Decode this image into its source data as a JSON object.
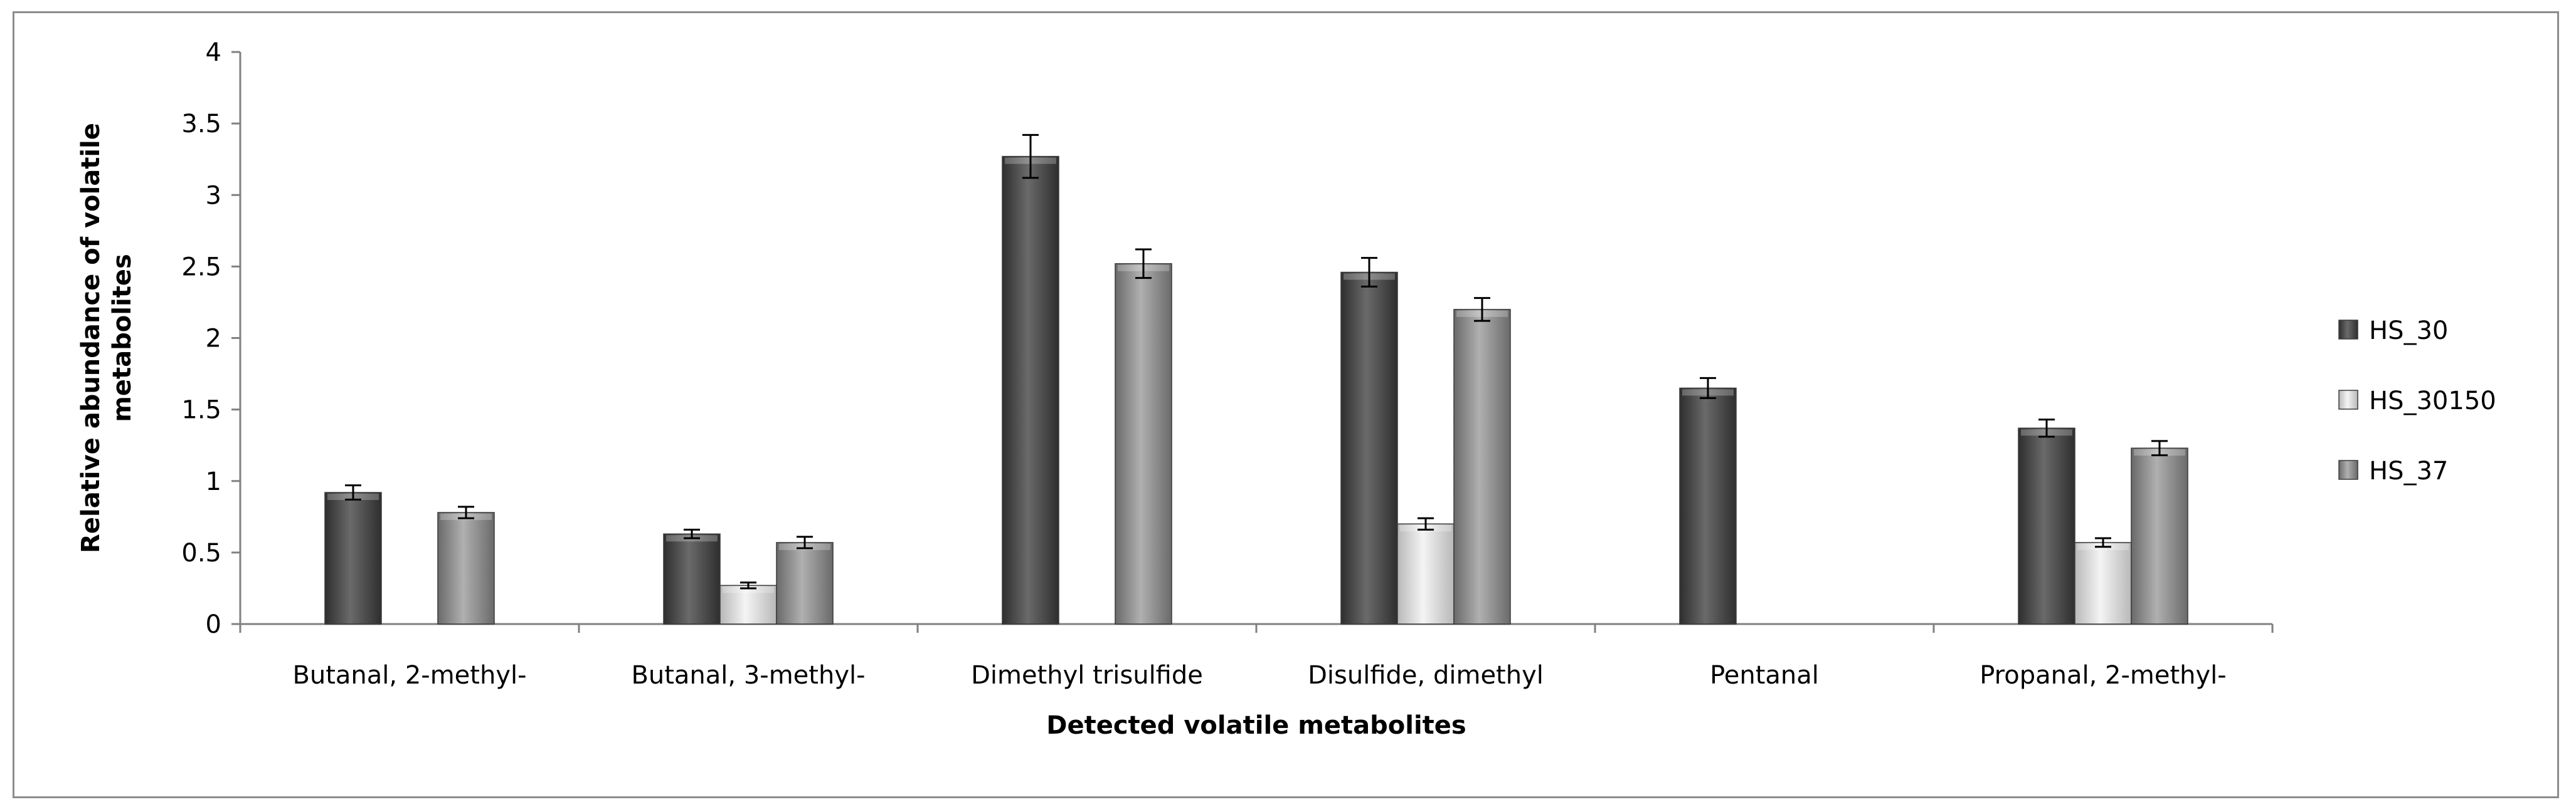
{
  "chart_data": {
    "type": "bar",
    "title": "",
    "xlabel": "Detected volatile metabolites",
    "ylabel_lines": [
      "Relative abundance of volatile",
      "metabolites"
    ],
    "ylim": [
      0,
      4
    ],
    "yticks": [
      "0",
      "0.5",
      "1",
      "1.5",
      "2",
      "2.5",
      "3",
      "3.5",
      "4"
    ],
    "grid": false,
    "legend_position": "right",
    "categories": [
      "Butanal, 2-methyl-",
      "Butanal, 3-methyl-",
      "Dimethyl trisulfide",
      "Disulfide, dimethyl",
      "Pentanal",
      "Propanal, 2-methyl-"
    ],
    "series": [
      {
        "name": "HS_30",
        "color": "#4a4a4a",
        "values": [
          0.92,
          0.63,
          3.27,
          2.46,
          1.65,
          1.37
        ],
        "errors": [
          0.05,
          0.03,
          0.15,
          0.1,
          0.07,
          0.06
        ]
      },
      {
        "name": "HS_30150",
        "color": "#d0d0d0",
        "values": [
          null,
          0.27,
          null,
          0.7,
          null,
          0.57
        ],
        "errors": [
          null,
          0.02,
          null,
          0.04,
          null,
          0.03
        ]
      },
      {
        "name": "HS_37",
        "color": "#8a8a8a",
        "values": [
          0.78,
          0.57,
          2.52,
          2.2,
          null,
          1.23
        ],
        "errors": [
          0.04,
          0.04,
          0.1,
          0.08,
          null,
          0.05
        ]
      }
    ]
  }
}
